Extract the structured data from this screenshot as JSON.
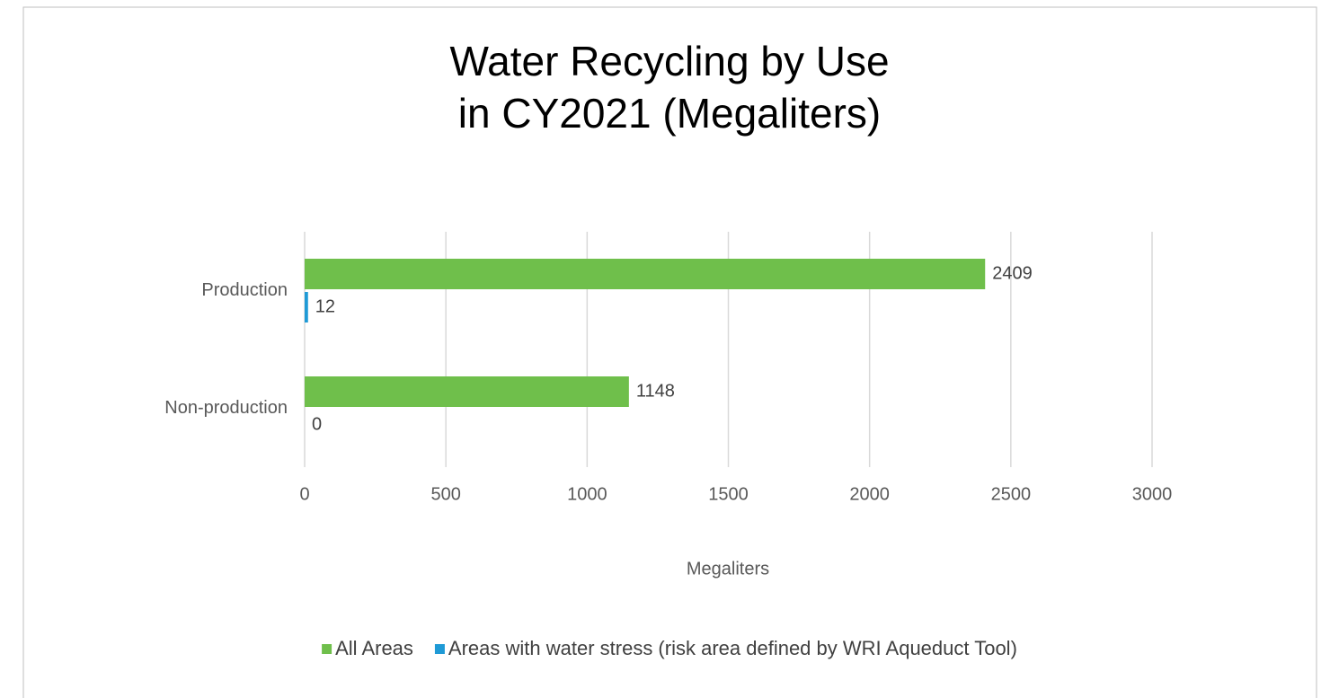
{
  "chart_data": {
    "type": "hbar",
    "title": [
      "Water Recycling by Use",
      "in CY2021 (Megaliters)"
    ],
    "categories": [
      "Production",
      "Non-production"
    ],
    "series": [
      {
        "name": "All Areas",
        "color": "#6fbf4b",
        "values": [
          2409,
          1148
        ]
      },
      {
        "name": "Areas with water stress (risk area defined by WRI Aqueduct Tool)",
        "color": "#1f9ad6",
        "values": [
          12,
          0
        ]
      }
    ],
    "x_label": "Megaliters",
    "xlim": [
      0,
      3000
    ],
    "xticks": [
      0,
      500,
      1000,
      1500,
      2000,
      2500,
      3000
    ],
    "grid": true,
    "legend": "bottom"
  }
}
